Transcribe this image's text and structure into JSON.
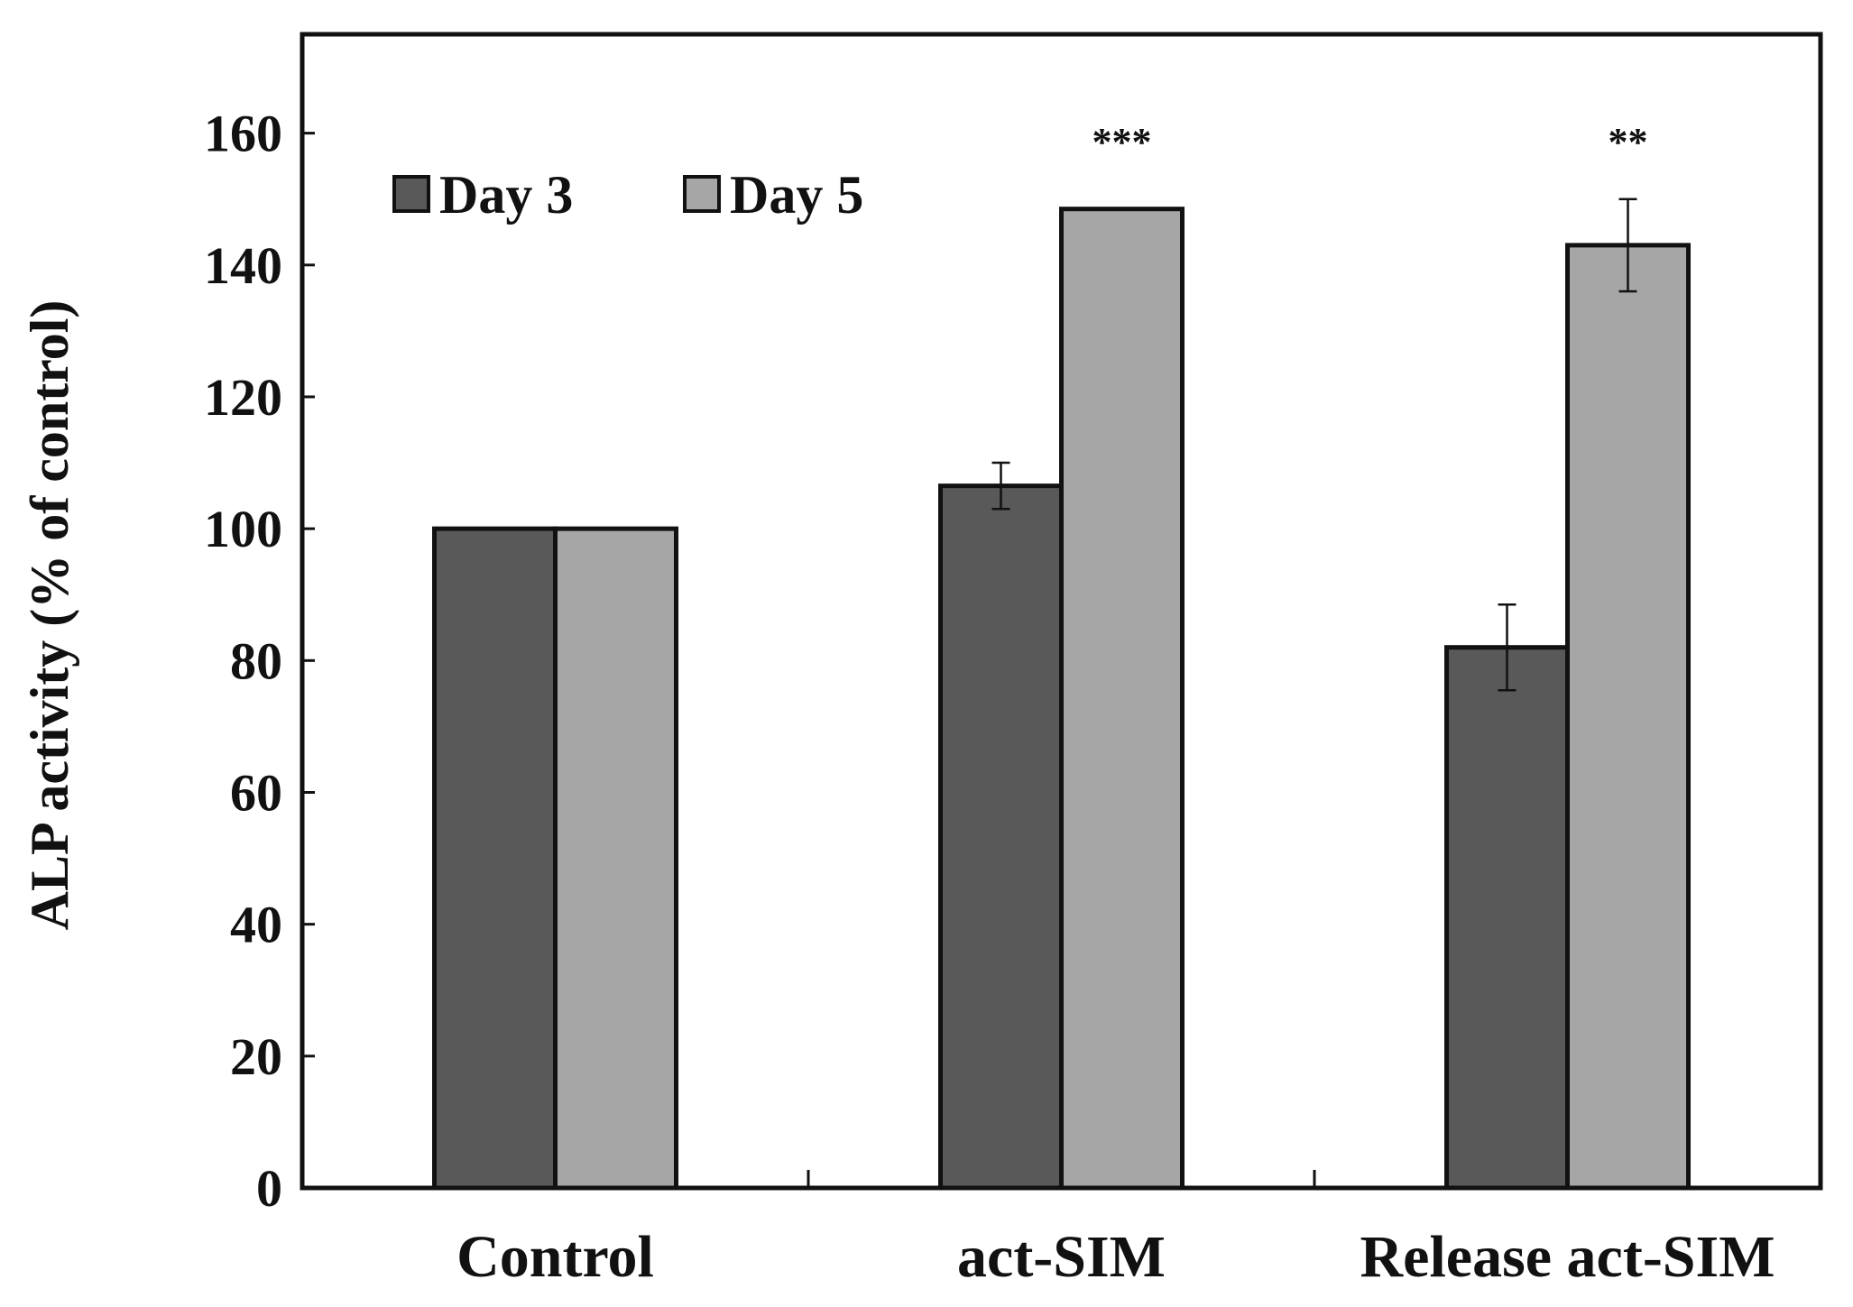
{
  "chart_data": {
    "type": "bar",
    "title": "",
    "xlabel": "",
    "ylabel": "ALP activity (% of control)",
    "ylim": [
      0,
      175
    ],
    "yticks": [
      "0",
      "20",
      "40",
      "60",
      "80",
      "100",
      "120",
      "140",
      "160"
    ],
    "categories": [
      "Control",
      "act-SIM",
      "Release act-SIM"
    ],
    "series": [
      {
        "name": "Day 3",
        "color": "#595959",
        "values": [
          100,
          106.5,
          82
        ],
        "errors": [
          0,
          3.5,
          6.5
        ]
      },
      {
        "name": "Day 5",
        "color": "#a6a6a6",
        "values": [
          100,
          148.5,
          143
        ],
        "errors": [
          0,
          0,
          7
        ]
      }
    ],
    "annotations": [
      "",
      "***",
      "**"
    ],
    "legend_position": "top-left",
    "grid": false
  }
}
